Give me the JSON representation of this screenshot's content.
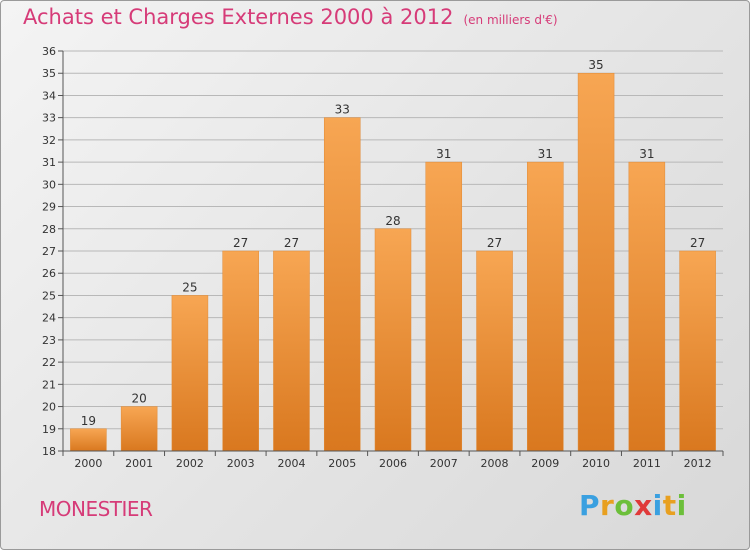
{
  "header": {
    "title": "Achats et Charges Externes 2000 à 2012",
    "subtitle": "(en milliers d'€)"
  },
  "footer": {
    "place": "MONESTIER",
    "brand": "Proxiti",
    "brand_colors": [
      "#3aa0e0",
      "#e8a020",
      "#6cbf3a",
      "#e03a3a",
      "#3aa0e0",
      "#e8a020",
      "#6cbf3a"
    ]
  },
  "colors": {
    "bar_top": "#f7a653",
    "bar_bottom": "#d9781f",
    "accent": "#d63b78"
  },
  "chart_data": {
    "type": "bar",
    "title": "Achats et Charges Externes 2000 à 2012",
    "subtitle": "(en milliers d'€)",
    "xlabel": "",
    "ylabel": "",
    "categories": [
      "2000",
      "2001",
      "2002",
      "2003",
      "2004",
      "2005",
      "2006",
      "2007",
      "2008",
      "2009",
      "2010",
      "2011",
      "2012"
    ],
    "values": [
      19,
      20,
      25,
      27,
      27,
      33,
      28,
      31,
      27,
      31,
      35,
      31,
      27
    ],
    "ylim": [
      18,
      36
    ],
    "yticks": [
      18,
      19,
      20,
      21,
      22,
      23,
      24,
      25,
      26,
      27,
      28,
      29,
      30,
      31,
      32,
      33,
      34,
      35,
      36
    ],
    "grid": true,
    "legend": "none"
  }
}
